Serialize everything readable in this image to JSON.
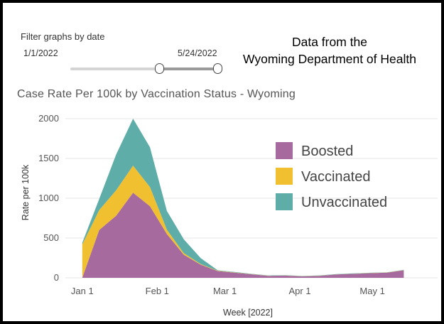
{
  "filter": {
    "label": "Filter graphs by date",
    "start_date": "1/1/2022",
    "end_date": "5/24/2022",
    "selected_range_fraction": [
      0.6,
      1.0
    ]
  },
  "source": {
    "line1": "Data from the",
    "line2": "Wyoming Department of Health"
  },
  "chart_data": {
    "type": "area",
    "stacked": true,
    "title": "Case Rate Per 100k by Vaccination Status - Wyoming",
    "xlabel": "Week [2022]",
    "ylabel": "Rate per 100k",
    "ylim": [
      0,
      2000
    ],
    "yticks": [
      0,
      500,
      1000,
      1500,
      2000
    ],
    "xticks": [
      {
        "label": "Jan 1",
        "date": "2022-01-01"
      },
      {
        "label": "Feb 1",
        "date": "2022-02-01"
      },
      {
        "label": "Mar 1",
        "date": "2022-03-01"
      },
      {
        "label": "Apr 1",
        "date": "2022-04-01"
      },
      {
        "label": "May 1",
        "date": "2022-05-01"
      }
    ],
    "grid": true,
    "legend_position": "top-right",
    "x": [
      "2022-01-01",
      "2022-01-08",
      "2022-01-15",
      "2022-01-22",
      "2022-01-29",
      "2022-02-05",
      "2022-02-12",
      "2022-02-19",
      "2022-02-26",
      "2022-03-05",
      "2022-03-12",
      "2022-03-19",
      "2022-03-26",
      "2022-04-02",
      "2022-04-09",
      "2022-04-16",
      "2022-04-23",
      "2022-04-30",
      "2022-05-07",
      "2022-05-14"
    ],
    "series": [
      {
        "name": "Boosted",
        "color": "#a66a9e",
        "values": [
          0,
          600,
          780,
          1070,
          900,
          550,
          290,
          165,
          85,
          65,
          45,
          25,
          28,
          18,
          25,
          42,
          50,
          58,
          65,
          95
        ]
      },
      {
        "name": "Vaccinated",
        "color": "#f0c030",
        "values": [
          420,
          250,
          320,
          340,
          240,
          55,
          20,
          8,
          4,
          3,
          2,
          2,
          2,
          2,
          2,
          2,
          2,
          2,
          2,
          2
        ]
      },
      {
        "name": "Unvaccinated",
        "color": "#5fada8",
        "values": [
          20,
          140,
          450,
          590,
          500,
          235,
          175,
          75,
          6,
          5,
          3,
          3,
          3,
          3,
          3,
          3,
          3,
          3,
          3,
          3
        ]
      }
    ]
  }
}
